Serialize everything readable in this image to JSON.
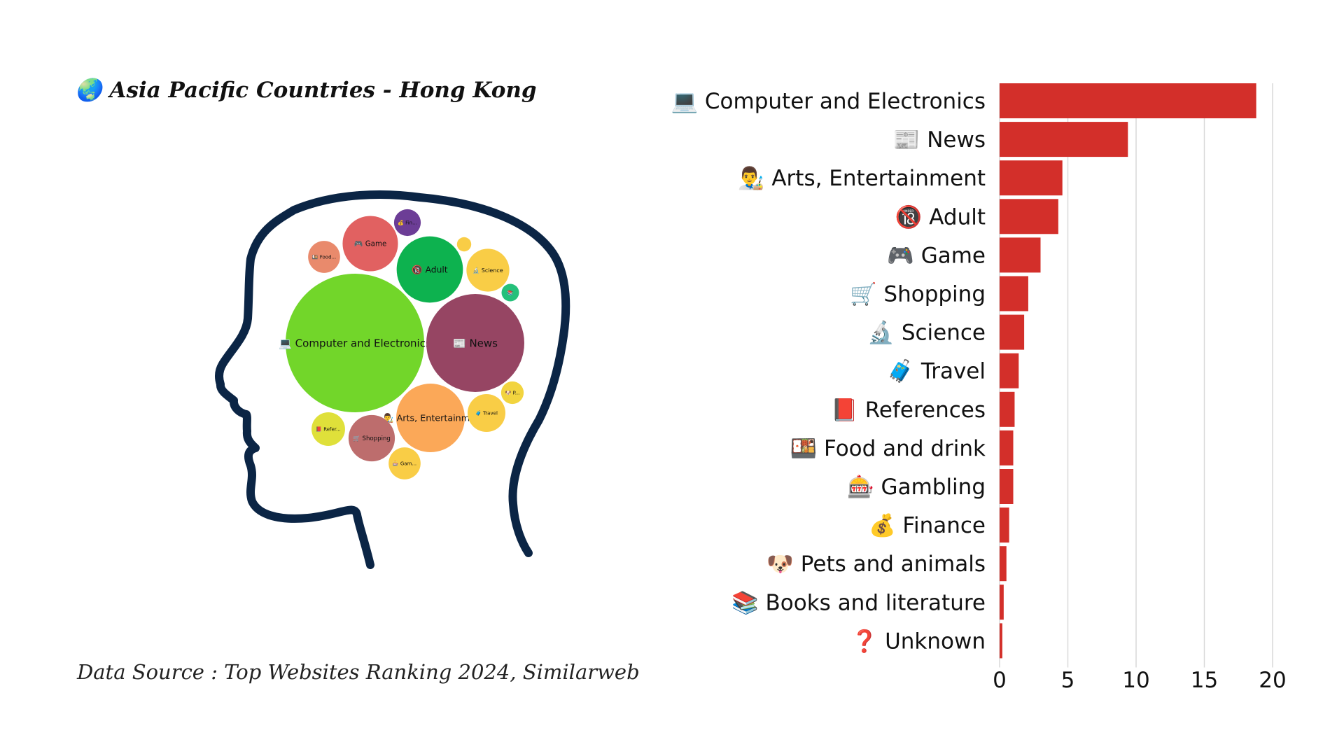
{
  "title": "🌏 Asia Pacific Countries - Hong Kong",
  "source": "Data Source : Top Websites Ranking 2024, Similarweb",
  "colors": {
    "bar": "#d32f2a",
    "grid": "#d9d9d9",
    "head": "#0b2545"
  },
  "chart_data": [
    {
      "type": "bar",
      "orientation": "horizontal",
      "categories": [
        "💻 Computer and Electronics",
        "📰 News",
        "👨‍🎨 Arts, Entertainment",
        "🔞 Adult",
        "🎮 Game",
        "🛒 Shopping",
        "🔬 Science",
        "🧳 Travel",
        "📕 References",
        "🍱 Food and drink",
        "🎰 Gambling",
        "💰 Finance",
        "🐶 Pets and animals",
        "📚 Books and literature",
        "❓ Unknown"
      ],
      "values": [
        18.8,
        9.4,
        4.6,
        4.3,
        3.0,
        2.1,
        1.8,
        1.4,
        1.1,
        1.0,
        1.0,
        0.7,
        0.5,
        0.3,
        0.2
      ],
      "xlim": [
        0,
        20
      ],
      "xticks": [
        "0",
        "5",
        "10",
        "15",
        "20"
      ],
      "grid": true
    },
    {
      "type": "bubble",
      "bubbles": [
        {
          "label": "💻 Computer and Electronics",
          "value": 18.8,
          "color": "#72d62a"
        },
        {
          "label": "📰 News",
          "value": 9.4,
          "color": "#964563"
        },
        {
          "label": "👨‍🎨 Arts, Entertainm...",
          "value": 4.6,
          "color": "#fba858"
        },
        {
          "label": "🔞 Adult",
          "value": 4.3,
          "color": "#0db24f"
        },
        {
          "label": "🎮 Game",
          "value": 3.0,
          "color": "#e16161"
        },
        {
          "label": "🛒 Shopping",
          "value": 2.1,
          "color": "#bd6d6d"
        },
        {
          "label": "🔬 Science",
          "value": 1.8,
          "color": "#f9cd46"
        },
        {
          "label": "🧳 Travel",
          "value": 1.4,
          "color": "#f9cd46"
        },
        {
          "label": "📕 Refer...",
          "value": 1.1,
          "color": "#dfe03a"
        },
        {
          "label": "🍱 Food...",
          "value": 1.0,
          "color": "#e98a6c"
        },
        {
          "label": "🎰 Gam...",
          "value": 1.0,
          "color": "#f9cd46"
        },
        {
          "label": "💰 Fin...",
          "value": 0.7,
          "color": "#6c3d96"
        },
        {
          "label": "🐶 P...",
          "value": 0.5,
          "color": "#f2d43f"
        },
        {
          "label": "📚",
          "value": 0.3,
          "color": "#25c07a"
        },
        {
          "label": "",
          "value": 0.2,
          "color": "#f9cd46"
        }
      ]
    }
  ]
}
